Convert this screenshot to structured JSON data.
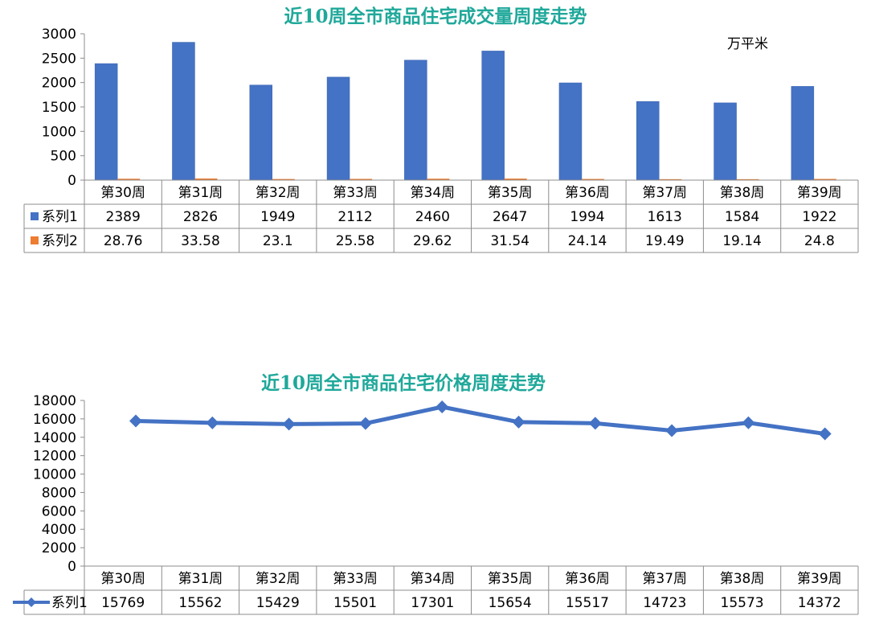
{
  "chart_data": [
    {
      "type": "bar",
      "title": "近10周全市商品住宅成交量周度走势",
      "unit_label": "万平米",
      "categories": [
        "第30周",
        "第31周",
        "第32周",
        "第33周",
        "第34周",
        "第35周",
        "第36周",
        "第37周",
        "第38周",
        "第39周"
      ],
      "series": [
        {
          "name": "系列1",
          "color": "#4472c4",
          "values": [
            2389,
            2826,
            1949,
            2112,
            2460,
            2647,
            1994,
            1613,
            1584,
            1922
          ]
        },
        {
          "name": "系列2",
          "color": "#ed7d31",
          "values": [
            28.76,
            33.58,
            23.1,
            25.58,
            29.62,
            31.54,
            24.14,
            19.49,
            19.14,
            24.8
          ]
        }
      ],
      "ylim": [
        0,
        3000
      ],
      "yticks": [
        0,
        500,
        1000,
        1500,
        2000,
        2500,
        3000
      ],
      "data_table": true
    },
    {
      "type": "line",
      "title": "近10周全市商品住宅价格周度走势",
      "categories": [
        "第30周",
        "第31周",
        "第32周",
        "第33周",
        "第34周",
        "第35周",
        "第36周",
        "第37周",
        "第38周",
        "第39周"
      ],
      "series": [
        {
          "name": "系列1",
          "color": "#4472c4",
          "marker": "diamond",
          "values": [
            15769,
            15562,
            15429,
            15501,
            17301,
            15654,
            15517,
            14723,
            15573,
            14372
          ]
        }
      ],
      "ylim": [
        0,
        18000
      ],
      "yticks": [
        0,
        2000,
        4000,
        6000,
        8000,
        10000,
        12000,
        14000,
        16000,
        18000
      ],
      "data_table": true
    }
  ]
}
